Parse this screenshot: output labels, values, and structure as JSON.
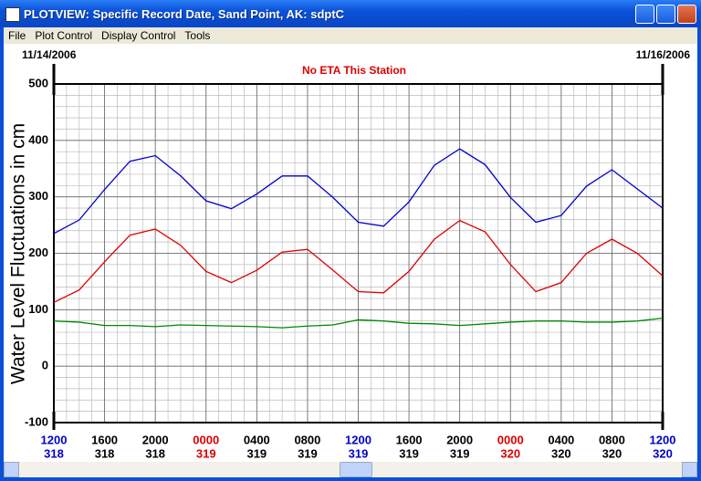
{
  "window": {
    "title": "PLOTVIEW: Specific Record Date, Sand Point, AK: sdptC",
    "menu": [
      "File",
      "Plot Control",
      "Display Control",
      "Tools"
    ]
  },
  "chart_data": {
    "type": "line",
    "title": "No ETA This Station",
    "start_date": "11/14/2006",
    "end_date": "11/16/2006",
    "y_label": "Water Level Fluctuations in cm",
    "x": [
      0,
      2,
      4,
      6,
      8,
      10,
      12,
      14,
      16,
      18,
      20,
      22,
      24,
      26,
      28,
      30,
      32,
      34,
      36,
      38,
      40,
      42,
      44,
      46,
      48
    ],
    "xlim": [
      0,
      48
    ],
    "xticks": [
      {
        "value": 0,
        "label": "1200",
        "day": "318",
        "color": "#0000cc"
      },
      {
        "value": 4,
        "label": "1600",
        "day": "318",
        "color": "#000000"
      },
      {
        "value": 8,
        "label": "2000",
        "day": "318",
        "color": "#000000"
      },
      {
        "value": 12,
        "label": "0000",
        "day": "319",
        "color": "#dd0000"
      },
      {
        "value": 16,
        "label": "0400",
        "day": "319",
        "color": "#000000"
      },
      {
        "value": 20,
        "label": "0800",
        "day": "319",
        "color": "#000000"
      },
      {
        "value": 24,
        "label": "1200",
        "day": "319",
        "color": "#0000cc"
      },
      {
        "value": 28,
        "label": "1600",
        "day": "319",
        "color": "#000000"
      },
      {
        "value": 32,
        "label": "2000",
        "day": "319",
        "color": "#000000"
      },
      {
        "value": 36,
        "label": "0000",
        "day": "320",
        "color": "#dd0000"
      },
      {
        "value": 40,
        "label": "0400",
        "day": "320",
        "color": "#000000"
      },
      {
        "value": 44,
        "label": "0800",
        "day": "320",
        "color": "#000000"
      },
      {
        "value": 48,
        "label": "1200",
        "day": "320",
        "color": "#0000cc"
      }
    ],
    "ylim": [
      -100,
      500
    ],
    "yticks": [
      -100,
      0,
      100,
      200,
      300,
      400,
      500
    ],
    "grid": true,
    "series": [
      {
        "color": "#0000cc",
        "values": [
          235,
          259,
          313,
          363,
          373,
          337,
          293,
          279,
          305,
          337,
          337,
          299,
          255,
          248,
          291,
          356,
          385,
          357,
          299,
          255,
          267,
          319,
          348,
          314,
          280
        ]
      },
      {
        "color": "#dd0000",
        "values": [
          113,
          135,
          185,
          232,
          243,
          214,
          168,
          148,
          170,
          202,
          207,
          170,
          132,
          130,
          168,
          225,
          258,
          238,
          180,
          132,
          148,
          200,
          225,
          200,
          160
        ]
      },
      {
        "color": "#008800",
        "values": [
          80,
          78,
          72,
          72,
          70,
          73,
          72,
          71,
          70,
          68,
          71,
          73,
          82,
          80,
          76,
          75,
          72,
          75,
          78,
          80,
          80,
          78,
          78,
          80,
          85
        ]
      }
    ]
  }
}
